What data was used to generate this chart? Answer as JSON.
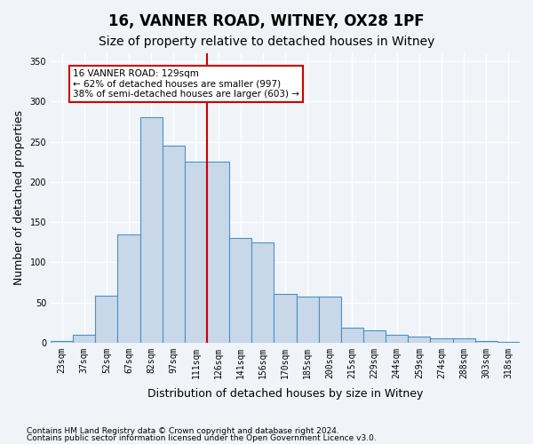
{
  "title": "16, VANNER ROAD, WITNEY, OX28 1PF",
  "subtitle": "Size of property relative to detached houses in Witney",
  "xlabel": "Distribution of detached houses by size in Witney",
  "ylabel": "Number of detached properties",
  "categories": [
    "23sqm",
    "37sqm",
    "52sqm",
    "67sqm",
    "82sqm",
    "97sqm",
    "111sqm",
    "126sqm",
    "141sqm",
    "156sqm",
    "170sqm",
    "185sqm",
    "200sqm",
    "215sqm",
    "229sqm",
    "244sqm",
    "259sqm",
    "274sqm",
    "288sqm",
    "303sqm",
    "318sqm"
  ],
  "bar_heights": [
    2,
    10,
    58,
    135,
    280,
    245,
    225,
    225,
    130,
    125,
    60,
    57,
    57,
    18,
    15,
    10,
    8,
    5,
    5,
    2,
    1
  ],
  "bar_color": "#c8d8e8",
  "bar_edge_color": "#4a90c8",
  "vline_x": 7,
  "vline_color": "#cc0000",
  "annotation_text": "16 VANNER ROAD: 129sqm\n← 62% of detached houses are smaller (997)\n38% of semi-detached houses are larger (603) →",
  "annotation_box_color": "#ffffff",
  "annotation_box_edge": "#cc0000",
  "ylim": [
    0,
    360
  ],
  "yticks": [
    0,
    50,
    100,
    150,
    200,
    250,
    300,
    350
  ],
  "footer1": "Contains HM Land Registry data © Crown copyright and database right 2024.",
  "footer2": "Contains public sector information licensed under the Open Government Licence v3.0.",
  "bg_color": "#f0f4f8",
  "grid_color": "#ffffff",
  "title_fontsize": 12,
  "subtitle_fontsize": 10,
  "xlabel_fontsize": 9,
  "ylabel_fontsize": 9,
  "tick_fontsize": 7
}
